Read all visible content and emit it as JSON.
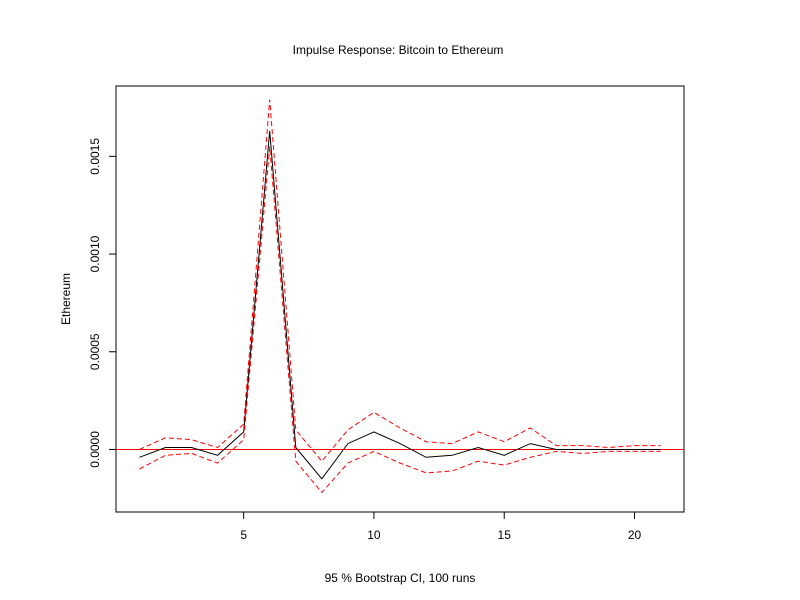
{
  "chart_data": {
    "type": "line",
    "title": "Impulse Response: Bitcoin to Ethereum",
    "xlabel": "95 % Bootstrap CI,  100 runs",
    "ylabel": "Ethereum",
    "xlim": [
      0.1,
      21.9
    ],
    "ylim": [
      -0.00032,
      0.00186
    ],
    "xticks": [
      5,
      10,
      15,
      20
    ],
    "xtick_labels": [
      "5",
      "10",
      "15",
      "20"
    ],
    "yticks": [
      0,
      0.0005,
      0.001,
      0.0015
    ],
    "ytick_labels": [
      "0.0000",
      "0.0005",
      "0.0010",
      "0.0015"
    ],
    "x": [
      1,
      2,
      3,
      4,
      5,
      6,
      7,
      8,
      9,
      10,
      11,
      12,
      13,
      14,
      15,
      16,
      17,
      18,
      19,
      20,
      21
    ],
    "series": [
      {
        "values": [
          -4e-05,
          1e-05,
          1e-05,
          -3e-05,
          9e-05,
          0.00163,
          1e-05,
          -0.00015,
          3e-05,
          9e-05,
          3e-05,
          -4e-05,
          -3e-05,
          1e-05,
          -3e-05,
          3e-05,
          0.0,
          0.0,
          0.0,
          0.0,
          0.0
        ],
        "color": "#000000",
        "dash": "solid"
      },
      {
        "values": [
          0.0,
          6e-05,
          5e-05,
          1e-05,
          0.00013,
          0.00179,
          0.0001,
          -6e-05,
          0.0001,
          0.00019,
          0.00011,
          4e-05,
          3e-05,
          9e-05,
          4e-05,
          0.00011,
          2e-05,
          2e-05,
          1e-05,
          2e-05,
          2e-05
        ],
        "color": "#ff0000",
        "dash": "dashed"
      },
      {
        "values": [
          -0.0001,
          -3e-05,
          -2e-05,
          -7e-05,
          5e-05,
          0.00155,
          -6e-05,
          -0.00022,
          -7e-05,
          -1e-05,
          -7e-05,
          -0.00012,
          -0.00011,
          -6e-05,
          -8e-05,
          -4e-05,
          -1e-05,
          -2e-05,
          -1e-05,
          -1e-05,
          -1e-05
        ],
        "color": "#ff0000",
        "dash": "dashed"
      }
    ],
    "hline": {
      "y": 0,
      "color": "#ff0000"
    },
    "grid": false,
    "legend": "none"
  }
}
